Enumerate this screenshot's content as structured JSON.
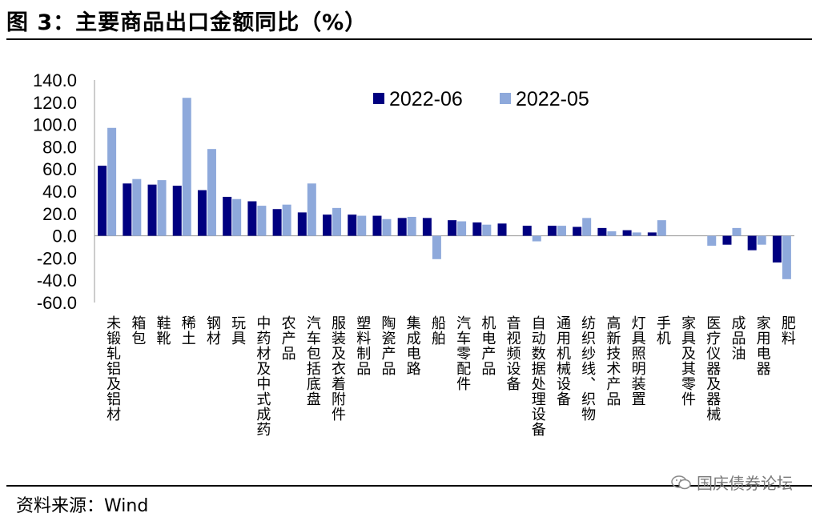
{
  "header": {
    "title": "图 3：主要商品出口金额同比（%）"
  },
  "footer": {
    "source": "资料来源：Wind",
    "watermark": "国庆债券论坛",
    "watermark_icon": "wechat-icon"
  },
  "colors": {
    "series_2022_06": "#000080",
    "series_2022_05": "#8ea9db"
  },
  "chart_data": {
    "type": "bar",
    "title": "图 3：主要商品出口金额同比（%）",
    "xlabel": "",
    "ylabel": "",
    "ylim": [
      -60,
      140
    ],
    "yticks": [
      "140.0",
      "120.0",
      "100.0",
      "80.0",
      "60.0",
      "40.0",
      "20.0",
      "0.0",
      "-20.0",
      "-40.0",
      "-60.0"
    ],
    "grid": false,
    "legend": "top-right",
    "categories": [
      "未锻轧铝及铝材",
      "箱包",
      "鞋靴",
      "稀土",
      "钢材",
      "玩具",
      "中药材及中式成药",
      "农产品",
      "汽车包括底盘",
      "服装及衣着附件",
      "塑料制品",
      "陶瓷产品",
      "集成电路",
      "船舶",
      "汽车零配件",
      "机电产品",
      "音视频设备",
      "自动数据处理设备",
      "通用机械设备",
      "纺织纱线、织物",
      "高新技术产品",
      "灯具照明装置",
      "手机",
      "家具及其零件",
      "医疗仪器及器械",
      "成品油",
      "家用电器",
      "肥料"
    ],
    "series": [
      {
        "name": "2022-06",
        "values": [
          63,
          47,
          46,
          45,
          41,
          35,
          31,
          24,
          21,
          19,
          19,
          18,
          16,
          16,
          14,
          12,
          11,
          9,
          9,
          8,
          7,
          5,
          3,
          0,
          0,
          -8,
          -13,
          -24
        ]
      },
      {
        "name": "2022-05",
        "values": [
          97,
          51,
          50,
          124,
          78,
          33,
          27,
          28,
          47,
          25,
          18,
          15,
          17,
          -21,
          13,
          10,
          0,
          -5,
          9,
          16,
          4,
          3,
          14,
          0,
          -9,
          7,
          -8,
          -39
        ]
      }
    ]
  }
}
